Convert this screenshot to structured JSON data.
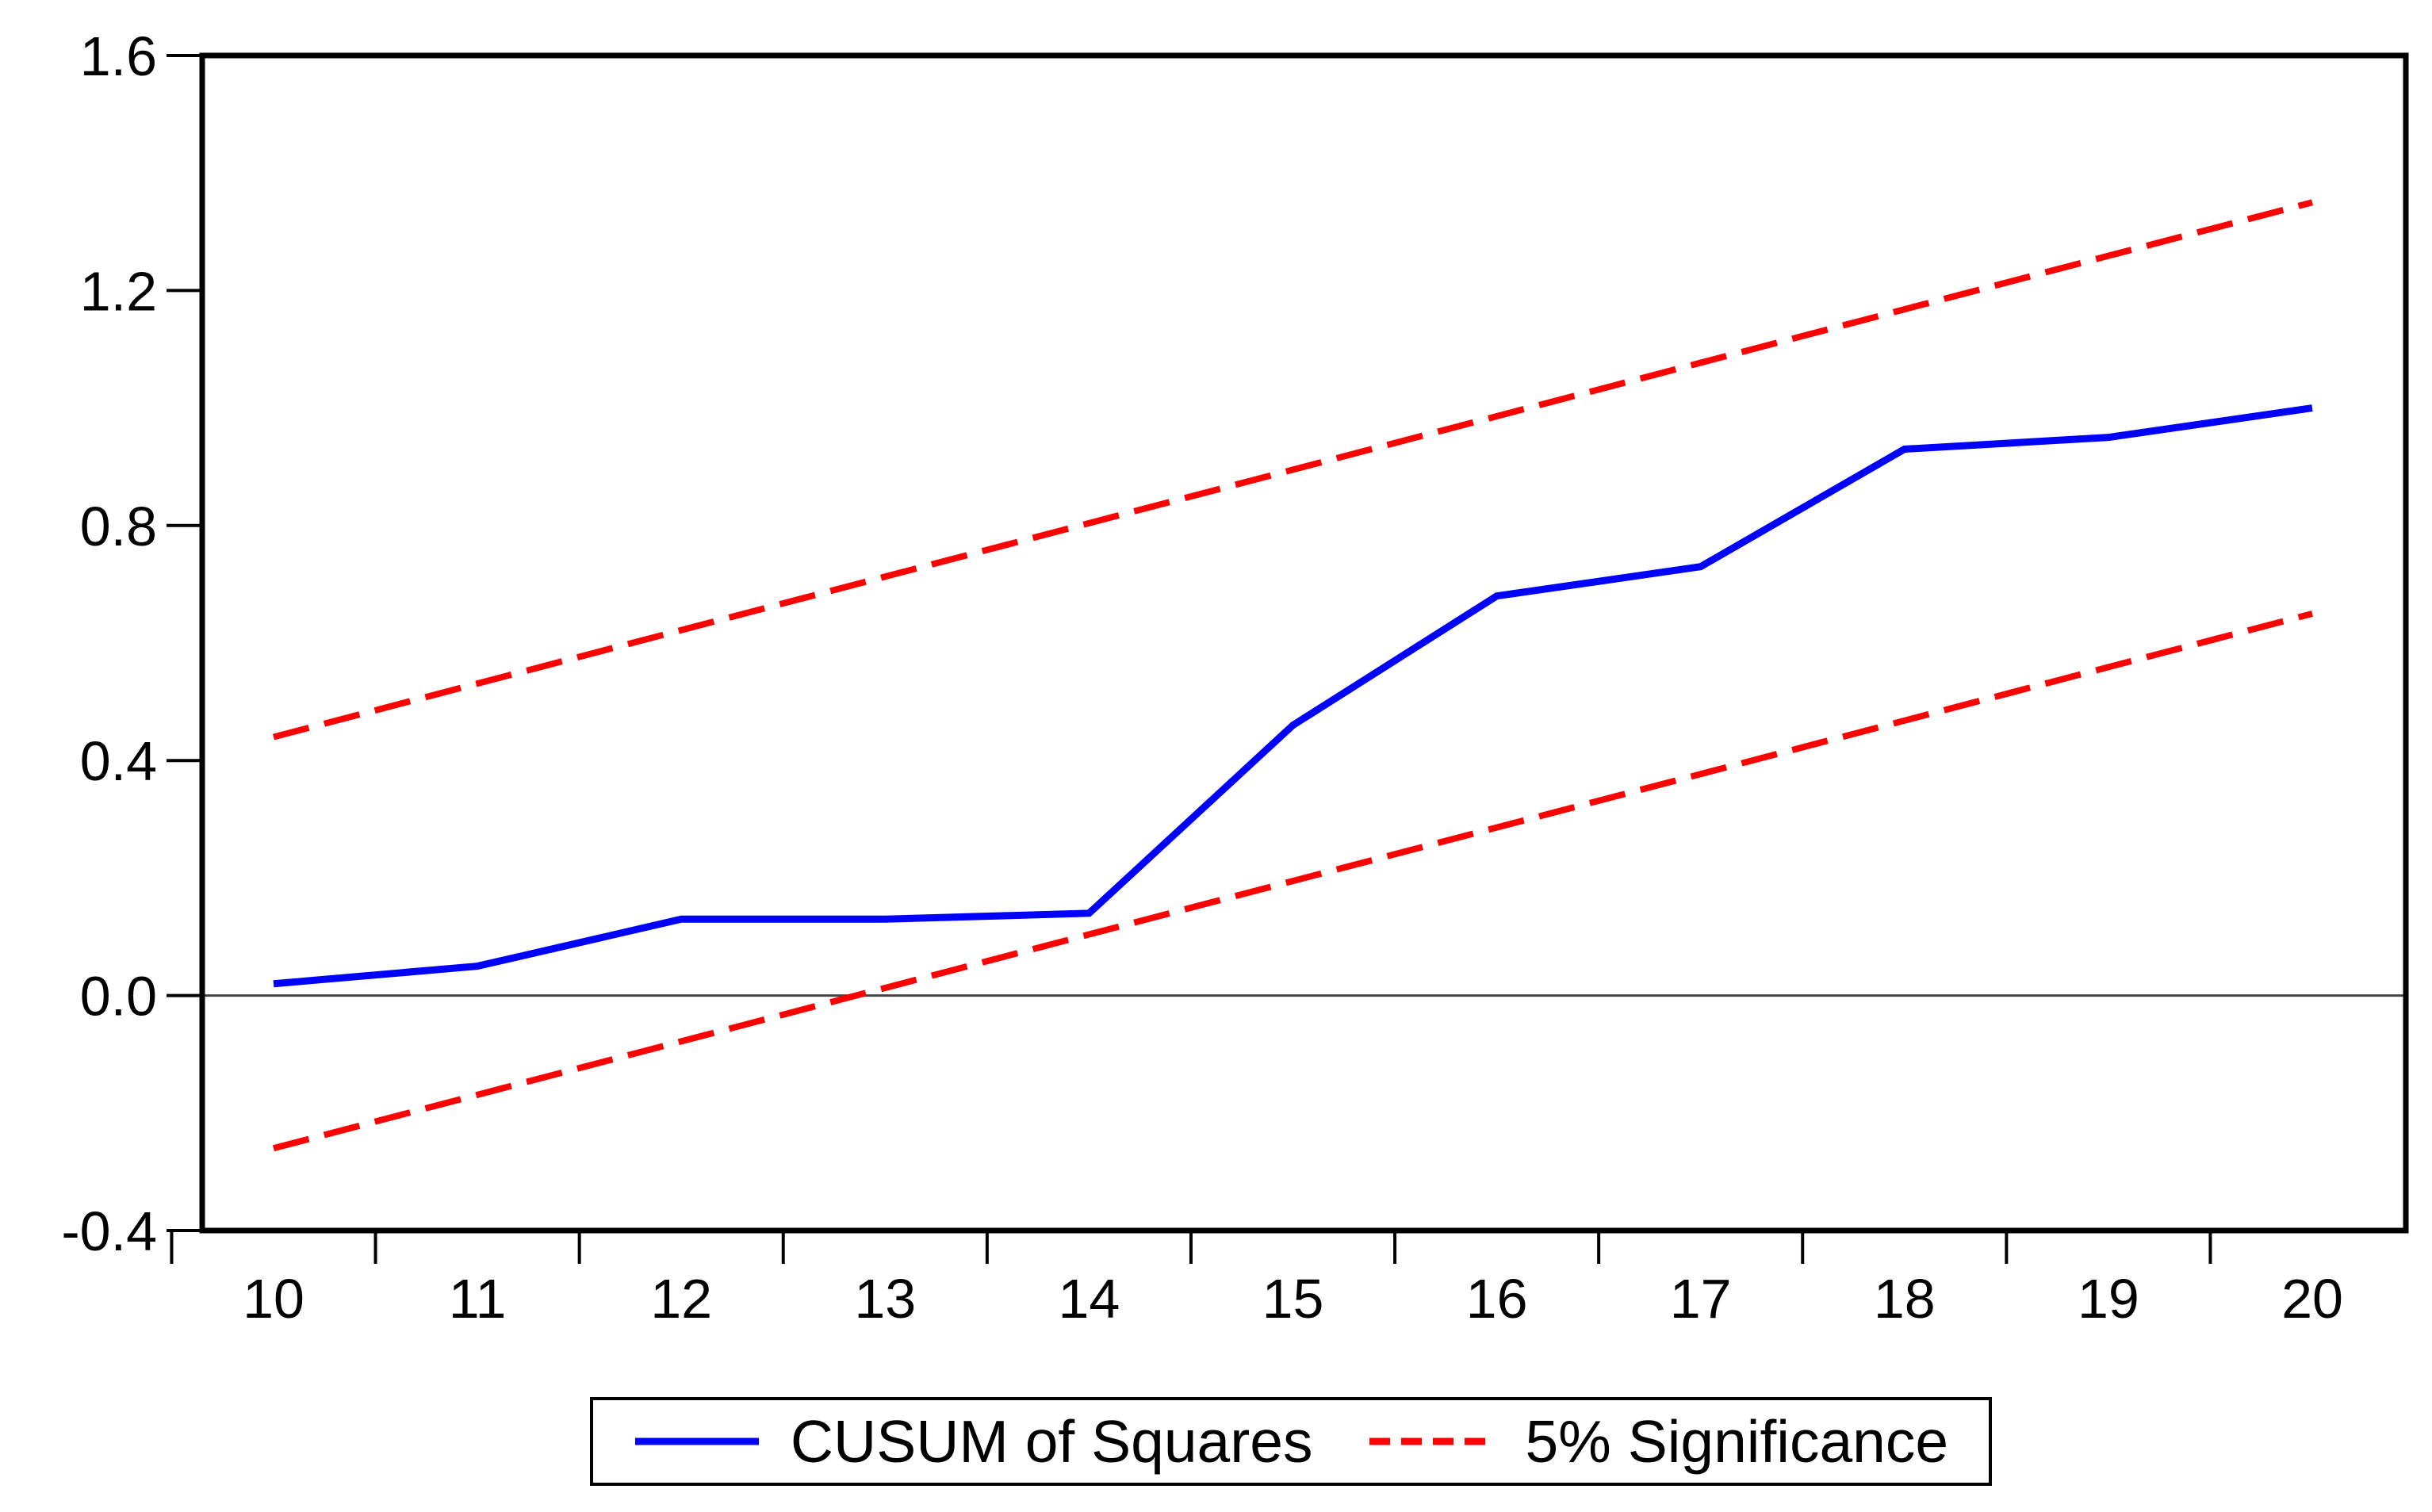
{
  "chart_data": {
    "type": "line",
    "x": [
      10,
      11,
      12,
      13,
      14,
      15,
      16,
      17,
      18,
      19,
      20
    ],
    "series": [
      {
        "name": "CUSUM of Squares",
        "color": "#0000ff",
        "style": "solid",
        "values": [
          0.02,
          0.05,
          0.13,
          0.13,
          0.14,
          0.46,
          0.68,
          0.73,
          0.93,
          0.95,
          1.0
        ]
      },
      {
        "name": "5% Significance (upper bound)",
        "color": "#ff0000",
        "style": "dashed",
        "values": [
          0.44,
          0.531,
          0.622,
          0.713,
          0.804,
          0.895,
          0.986,
          1.077,
          1.168,
          1.259,
          1.35
        ]
      },
      {
        "name": "5% Significance (lower bound)",
        "color": "#ff0000",
        "style": "dashed",
        "values": [
          -0.26,
          -0.169,
          -0.078,
          0.013,
          0.104,
          0.195,
          0.286,
          0.377,
          0.468,
          0.559,
          0.65
        ]
      }
    ],
    "title": "",
    "xlabel": "",
    "ylabel": "",
    "ylim": [
      -0.4,
      1.6
    ],
    "yticks": [
      1.6,
      1.2,
      0.8,
      0.4,
      0.0,
      -0.4
    ],
    "ytick_labels": [
      "1.6",
      "1.2",
      "0.8",
      "0.4",
      "0.0",
      "-0.4"
    ],
    "xtick_labels": [
      "10",
      "11",
      "12",
      "13",
      "14",
      "15",
      "16",
      "17",
      "18",
      "19",
      "20"
    ],
    "minor_xticks": [
      9.5,
      10.5,
      11.5,
      12.5,
      13.5,
      14.5,
      15.5,
      16.5,
      17.5,
      18.5,
      19.5
    ],
    "zero_line": 0.0,
    "grid": false,
    "legend_position": "bottom"
  },
  "legend": {
    "items": [
      {
        "label": "CUSUM of Squares",
        "color": "#0000ff",
        "style": "solid"
      },
      {
        "label": "5% Significance",
        "color": "#ff0000",
        "style": "dashed"
      }
    ]
  },
  "colors": {
    "background": "#ffffff",
    "axis": "#000000",
    "tick_text": "#000000",
    "zero_line": "#444444",
    "cusum_line": "#0000ff",
    "significance_line": "#ff0000"
  }
}
